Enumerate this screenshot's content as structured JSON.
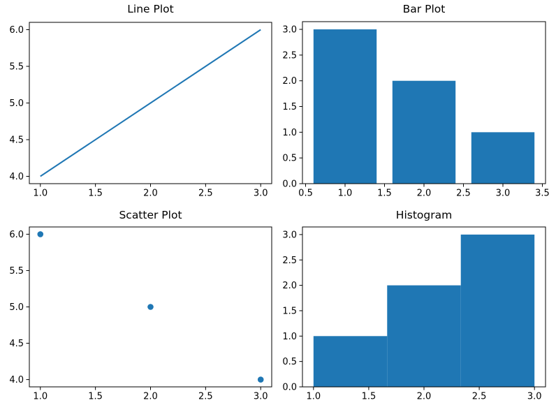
{
  "figure": {
    "background": "#ffffff",
    "accent_color": "#1f77b4",
    "spine_color": "#000000",
    "text_color": "#000000"
  },
  "chart_data": [
    {
      "type": "line",
      "title": "Line Plot",
      "x": [
        1,
        2,
        3
      ],
      "y": [
        4,
        5,
        6
      ],
      "xlabel": "",
      "ylabel": "",
      "xticks": [
        1.0,
        1.5,
        2.0,
        2.5,
        3.0
      ],
      "yticks": [
        4.0,
        4.5,
        5.0,
        5.5,
        6.0
      ],
      "xlim": [
        0.9,
        3.1
      ],
      "ylim": [
        3.9,
        6.1
      ],
      "grid": false,
      "legend": null,
      "color": "#1f77b4"
    },
    {
      "type": "bar",
      "title": "Bar Plot",
      "categories": [
        1,
        2,
        3
      ],
      "values": [
        3,
        2,
        1
      ],
      "bar_width": 0.8,
      "xlabel": "",
      "ylabel": "",
      "xticks": [
        0.5,
        1.0,
        1.5,
        2.0,
        2.5,
        3.0,
        3.5
      ],
      "yticks": [
        0.0,
        0.5,
        1.0,
        1.5,
        2.0,
        2.5,
        3.0
      ],
      "xlim": [
        0.46,
        3.54
      ],
      "ylim": [
        0,
        3.15
      ],
      "grid": false,
      "legend": null,
      "color": "#1f77b4"
    },
    {
      "type": "scatter",
      "title": "Scatter Plot",
      "x": [
        1,
        2,
        3
      ],
      "y": [
        6,
        5,
        4
      ],
      "xlabel": "",
      "ylabel": "",
      "xticks": [
        1.0,
        1.5,
        2.0,
        2.5,
        3.0
      ],
      "yticks": [
        4.0,
        4.5,
        5.0,
        5.5,
        6.0
      ],
      "xlim": [
        0.9,
        3.1
      ],
      "ylim": [
        3.9,
        6.1
      ],
      "grid": false,
      "legend": null,
      "color": "#1f77b4"
    },
    {
      "type": "histogram",
      "title": "Histogram",
      "bin_edges": [
        1.0,
        1.6667,
        2.3333,
        3.0
      ],
      "counts": [
        1,
        2,
        3
      ],
      "xlabel": "",
      "ylabel": "",
      "xticks": [
        1.0,
        1.5,
        2.0,
        2.5,
        3.0
      ],
      "yticks": [
        0.0,
        0.5,
        1.0,
        1.5,
        2.0,
        2.5,
        3.0
      ],
      "xlim": [
        0.9,
        3.1
      ],
      "ylim": [
        0,
        3.15
      ],
      "grid": false,
      "legend": null,
      "color": "#1f77b4"
    }
  ]
}
